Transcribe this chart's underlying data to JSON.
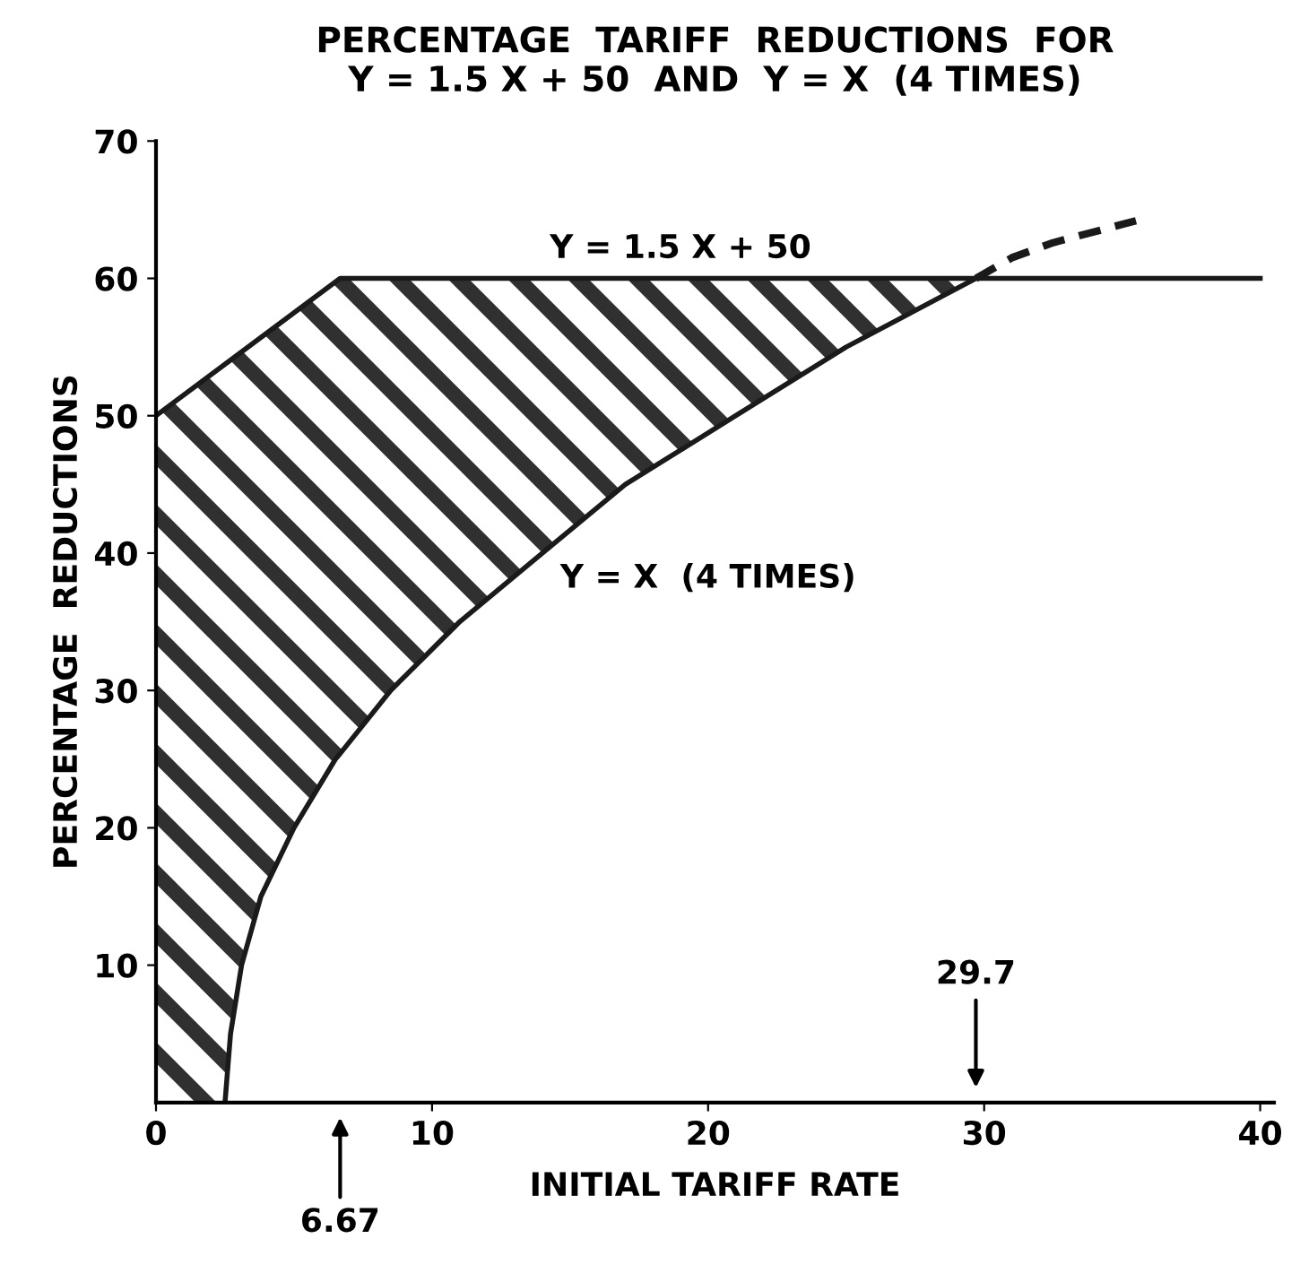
{
  "chart_data": {
    "type": "line",
    "title": "PERCENTAGE  TARIFF  REDUCTIONS  FOR\nY = 1.5 X + 50  AND  Y = X  (4 TIMES)",
    "xlabel": "INITIAL TARIFF RATE",
    "ylabel": "PERCENTAGE  REDUCTIONS",
    "series": [
      {
        "color": "#1a1a1a",
        "x": [
          0,
          6.67,
          40
        ],
        "values": [
          50,
          60,
          60
        ],
        "line_style": "solid"
      },
      {
        "color": "#1a1a1a",
        "x": [
          0,
          2.5,
          2.7,
          3.1,
          3.8,
          5,
          6.5,
          6.67,
          8.5,
          11,
          14,
          17,
          21,
          25,
          29.7
        ],
        "values": [
          null,
          0,
          5,
          10,
          15,
          20,
          25,
          25.4,
          30,
          35,
          40,
          45,
          50,
          55,
          60
        ],
        "line_style": "solid",
        "lower": [
          0,
          0,
          5,
          10,
          15,
          20,
          25,
          25.4,
          30,
          35,
          40,
          45,
          50,
          55,
          60
        ],
        "upper": [
          50,
          53.8,
          54.1,
          54.7,
          55.7,
          57.5,
          59.8,
          60,
          60,
          60,
          60,
          60,
          60,
          60,
          60
        ]
      },
      {
        "color": "#1a1a1a",
        "x": [
          29.7,
          31,
          32.5,
          34,
          35.5
        ],
        "values": [
          60,
          61.5,
          62.6,
          63.4,
          64.2
        ],
        "line_style": "dashed"
      }
    ],
    "annotations": [
      "Y = 1.5 X + 50",
      "Y = X  (4 TIMES)",
      "6.67",
      "29.7"
    ],
    "xlim": [
      0,
      40.5
    ],
    "ylim": [
      0,
      70
    ],
    "xticks": [
      0,
      10,
      20,
      30,
      40
    ],
    "yticks": [
      10,
      20,
      30,
      40,
      50,
      60,
      70
    ],
    "grid": false,
    "marker": "none"
  }
}
